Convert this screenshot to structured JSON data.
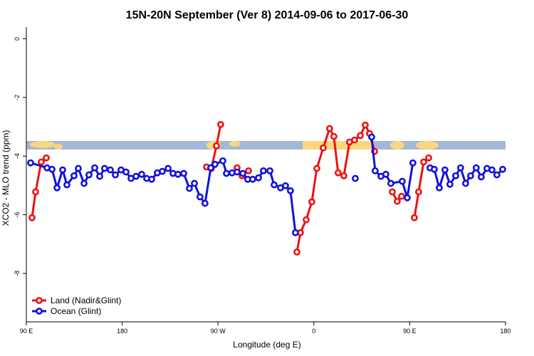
{
  "chart_data": {
    "type": "line",
    "title": "15N-20N September (Ver 8)   2014-09-06 to 2017-06-30",
    "x_label": "Longitude (deg E)",
    "y_label": "XCO2 - MLO trend (ppm)",
    "xlim": [
      90,
      540
    ],
    "xticks": [
      {
        "value": 90,
        "label": "90 E"
      },
      180,
      {
        "value": 270,
        "label": "90 W"
      },
      {
        "value": 360,
        "label": "0"
      },
      {
        "value": 450,
        "label": "90 E"
      },
      {
        "value": 540,
        "label": "180"
      }
    ],
    "ylim": [
      -9.65,
      0.4
    ],
    "yticks": [
      0,
      -2,
      -4,
      -6,
      -8
    ],
    "legend": "bottom-left",
    "series": [
      {
        "name": "Land (Nadir&Glint)",
        "color": "#ee1111",
        "x": [
          95.3,
          98.7,
          104.0,
          108.7,
          null,
          259.2,
          263.8,
          268.5,
          272.5,
          null,
          287.9,
          292.6,
          null,
          298.6,
          null,
          344.1,
          347.4,
          352.8,
          358.1,
          362.8,
          368.8,
          374.8,
          378.8,
          382.8,
          388.2,
          393.5,
          398.2,
          403.6,
          408.3,
          412.3,
          417.0,
          null,
          433.7,
          438.3,
          442.4,
          null,
          454.4,
          458.4,
          463.1,
          467.8
        ],
        "values": [
          -6.1,
          -5.22,
          -4.2,
          -4.06,
          null,
          -4.37,
          -4.42,
          -3.65,
          -2.92,
          null,
          -4.4,
          -4.67,
          null,
          -4.5,
          null,
          -7.27,
          -6.61,
          -6.17,
          -5.56,
          -4.42,
          -3.72,
          -3.06,
          -3.33,
          -4.57,
          -4.67,
          -3.52,
          -3.45,
          -3.3,
          -2.94,
          -3.23,
          -3.84,
          null,
          -5.22,
          -5.54,
          -5.37,
          null,
          -6.1,
          -5.22,
          -4.2,
          -4.06
        ]
      },
      {
        "name": "Ocean (Glint)",
        "color": "#1111dd",
        "x": [
          94.0,
          109.4,
          114.1,
          118.8,
          124.1,
          128.1,
          134.8,
          138.8,
          144.2,
          148.8,
          154.2,
          158.9,
          163.5,
          168.9,
          173.6,
          178.9,
          183.6,
          188.3,
          193.0,
          198.3,
          203.0,
          207.7,
          213.0,
          217.7,
          223.1,
          227.7,
          232.4,
          237.8,
          243.1,
          247.8,
          253.1,
          257.8,
          263.2,
          267.2,
          274.5,
          277.9,
          283.2,
          287.9,
          293.3,
          297.9,
          302.6,
          308.0,
          312.6,
          318.7,
          322.7,
          328.7,
          333.4,
          338.0,
          342.7,
          null,
          398.9,
          null,
          414.3,
          417.6,
          423.0,
          427.6,
          432.3,
          443.0,
          447.7,
          453.0,
          null,
          469.1,
          473.1,
          477.8,
          483.1,
          487.8,
          493.2,
          497.8,
          502.5,
          507.2,
          512.5,
          517.2,
          522.6,
          527.3,
          531.9,
          537.3
        ],
        "values": [
          -4.23,
          -4.4,
          -4.45,
          -5.08,
          -4.47,
          -4.98,
          -4.67,
          -4.42,
          -4.93,
          -4.64,
          -4.4,
          -4.69,
          -4.42,
          -4.47,
          -4.64,
          -4.47,
          -4.54,
          -4.76,
          -4.69,
          -4.62,
          -4.76,
          -4.79,
          -4.57,
          -4.52,
          -4.42,
          -4.59,
          -4.62,
          -4.59,
          -5.1,
          -4.93,
          -5.39,
          -5.61,
          -4.4,
          -4.28,
          -4.16,
          -4.59,
          -4.57,
          -4.54,
          -4.59,
          -4.79,
          -4.79,
          -4.74,
          -4.5,
          -4.5,
          -4.98,
          -5.08,
          -5.01,
          -5.18,
          -6.61,
          null,
          -4.76,
          null,
          -3.35,
          -4.5,
          -4.69,
          -4.62,
          -4.93,
          -4.86,
          -5.42,
          -4.23,
          null,
          -4.4,
          -4.45,
          -5.08,
          -4.47,
          -4.96,
          -4.67,
          -4.4,
          -4.93,
          -4.67,
          -4.4,
          -4.71,
          -4.42,
          -4.47,
          -4.64,
          -4.45
        ]
      }
    ]
  }
}
